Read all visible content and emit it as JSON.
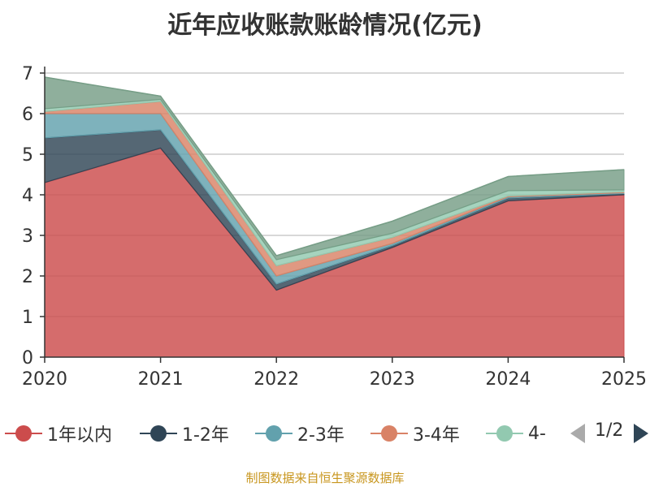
{
  "chart_data": {
    "type": "area",
    "title": "近年应收账款账龄情况(亿元)",
    "x": [
      "2020",
      "2021",
      "2022",
      "2023",
      "2024",
      "2025"
    ],
    "ylim": [
      0,
      7
    ],
    "yticks": [
      "0",
      "1",
      "2",
      "3",
      "4",
      "5",
      "6",
      "7"
    ],
    "grid": true,
    "stacked": true,
    "legend_position": "bottom",
    "series": [
      {
        "name": "1年以内",
        "color": "#cc4c4c",
        "values": [
          4.3,
          5.15,
          1.65,
          2.7,
          3.85,
          4.0
        ]
      },
      {
        "name": "1-2年",
        "color": "#2f4556",
        "values": [
          1.1,
          0.45,
          0.15,
          0.05,
          0.07,
          0.03
        ]
      },
      {
        "name": "2-3年",
        "color": "#62a1ad",
        "values": [
          0.6,
          0.4,
          0.2,
          0.05,
          0.03,
          0.02
        ]
      },
      {
        "name": "3-4年",
        "color": "#d98266",
        "values": [
          0.05,
          0.3,
          0.25,
          0.15,
          0.02,
          0.02
        ]
      },
      {
        "name": "4-",
        "color": "#92c9b0",
        "values": [
          0.07,
          0.05,
          0.15,
          0.1,
          0.13,
          0.05
        ]
      },
      {
        "color": "#769d86",
        "values": [
          0.78,
          0.08,
          0.1,
          0.3,
          0.35,
          0.5
        ]
      }
    ]
  },
  "legend": {
    "labels": [
      "1年以内",
      "1-2年",
      "2-3年",
      "3-4年",
      "4-"
    ],
    "page": "1/2",
    "prev_icon": "triangle-left-icon",
    "next_icon": "triangle-right-icon"
  },
  "footer": {
    "source": "制图数据来自恒生聚源数据库"
  }
}
